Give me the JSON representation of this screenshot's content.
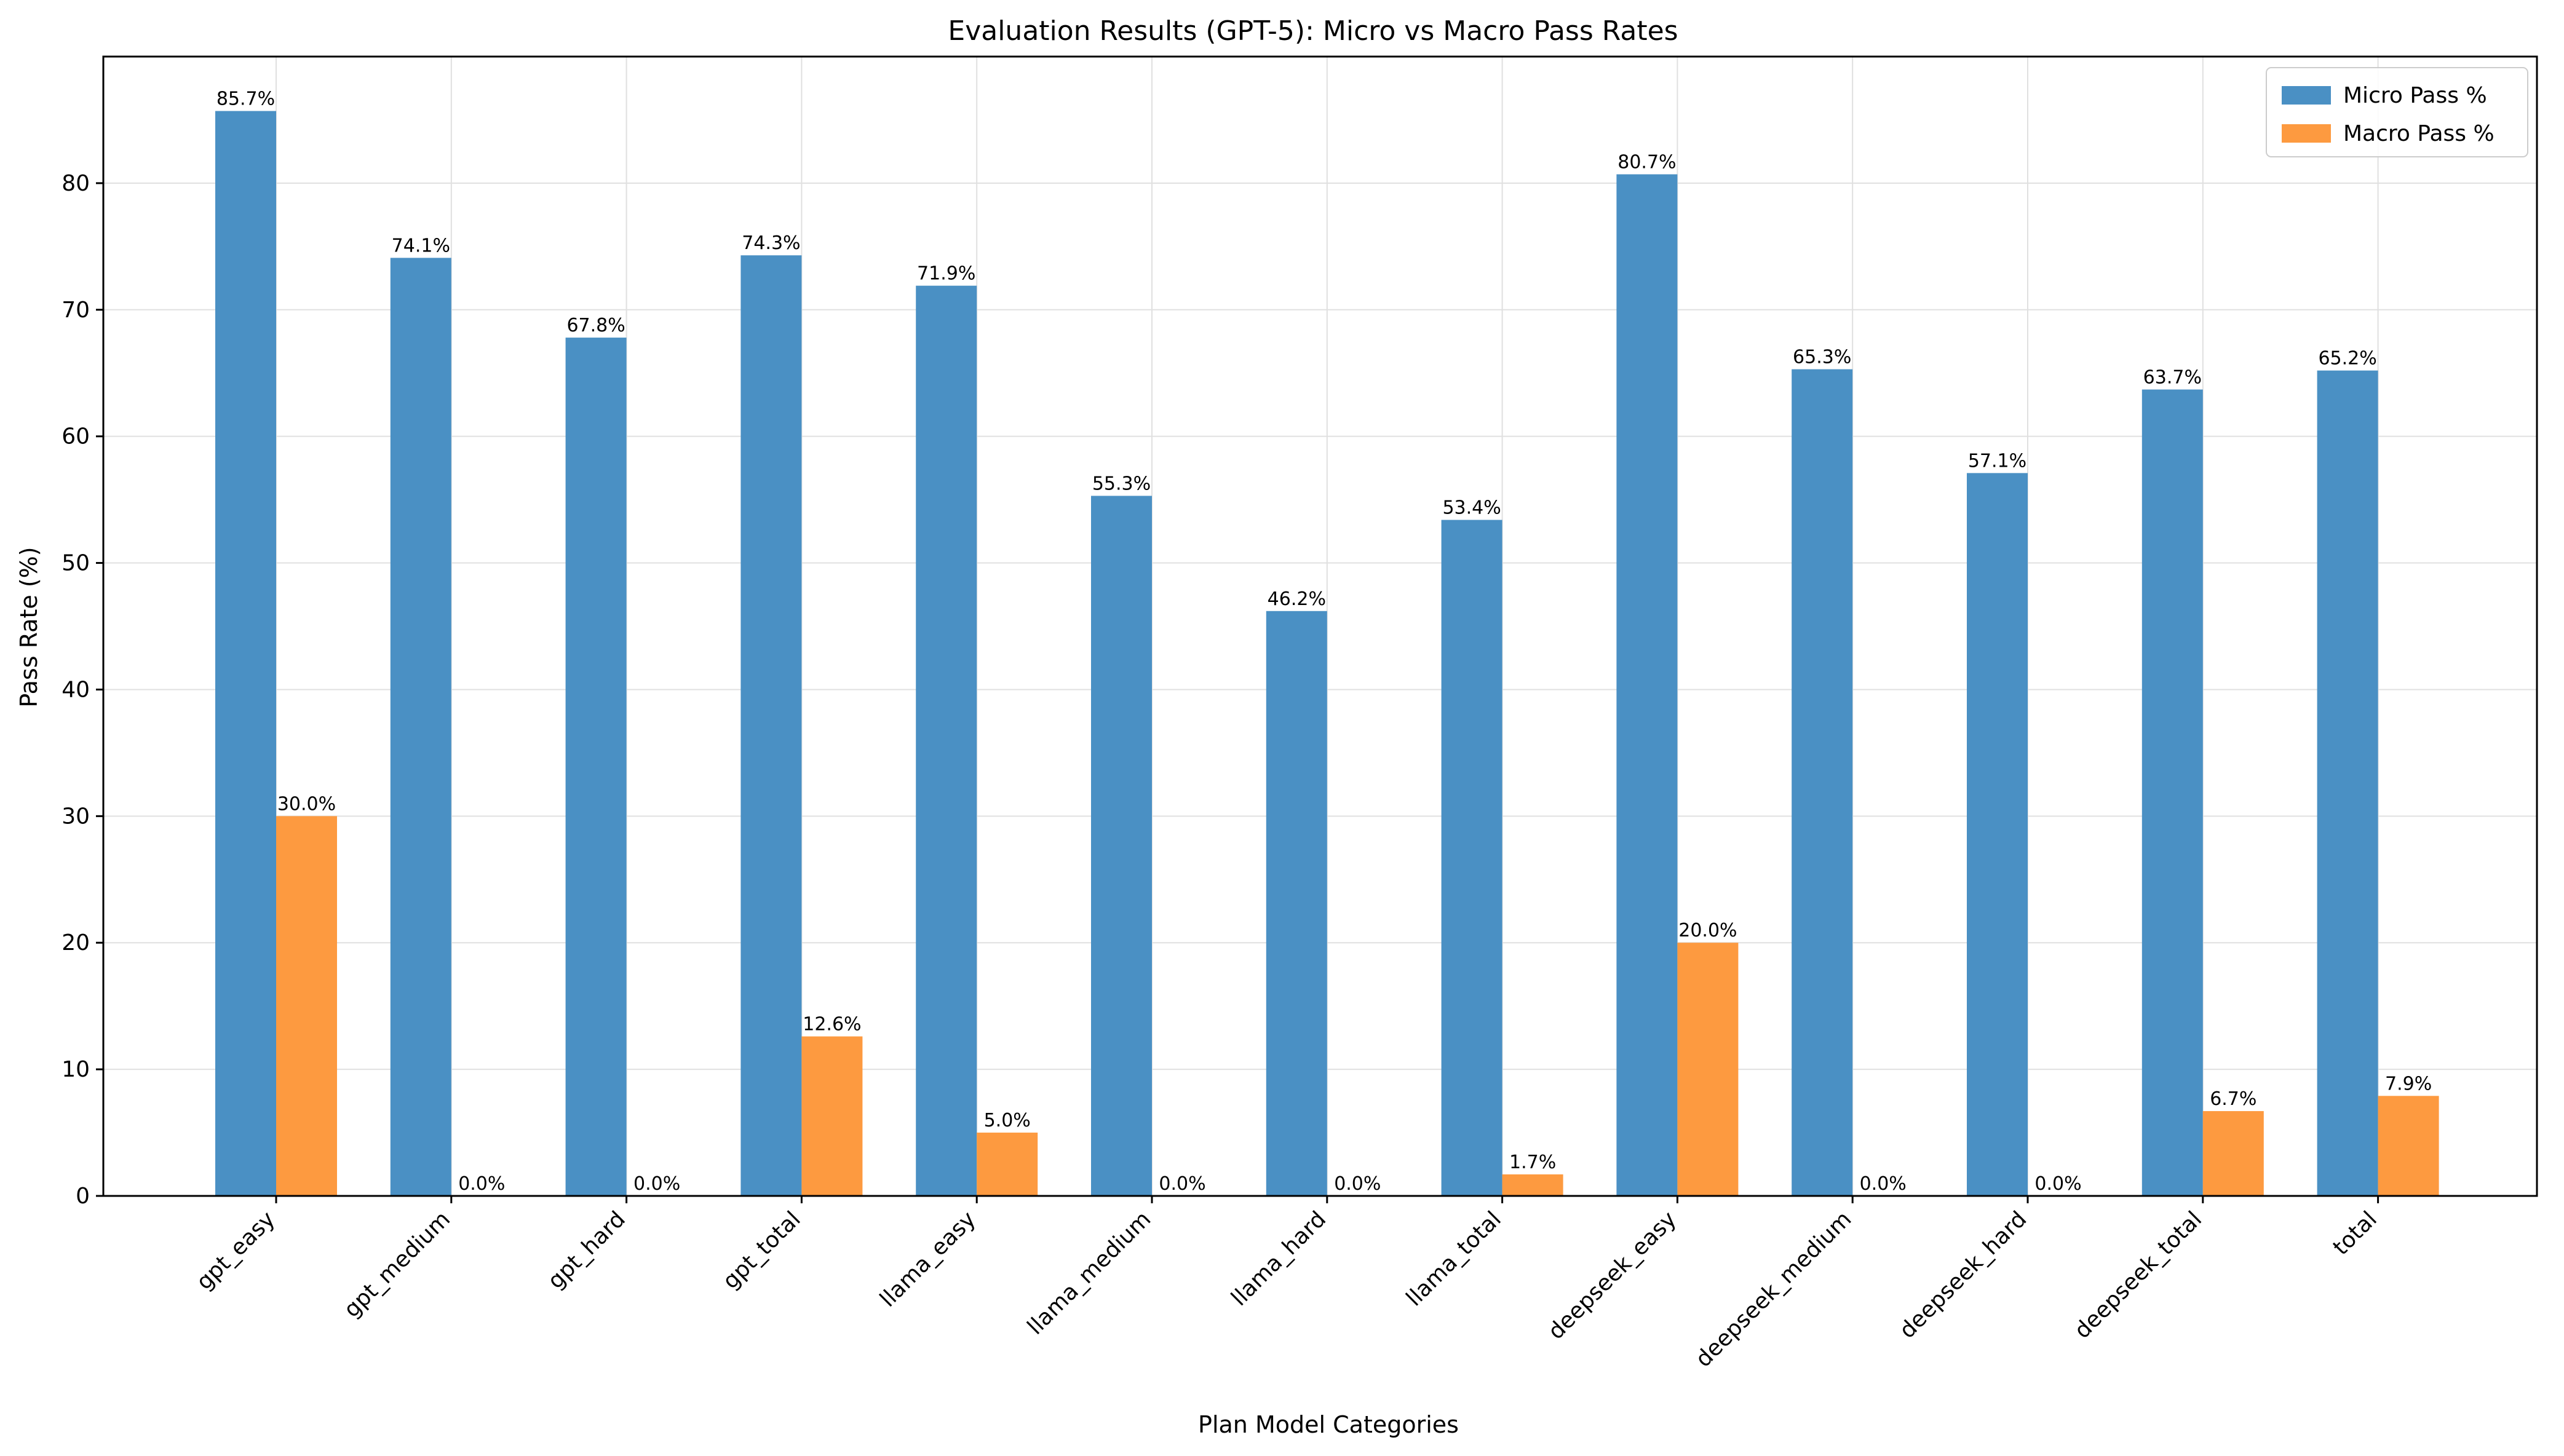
{
  "chart_data": {
    "type": "bar",
    "title": "Evaluation Results (GPT-5): Micro vs Macro Pass Rates",
    "xlabel": "Plan Model Categories",
    "ylabel": "Pass Rate (%)",
    "ylim": [
      0,
      90
    ],
    "yticks": [
      0,
      10,
      20,
      30,
      40,
      50,
      60,
      70,
      80
    ],
    "grid": true,
    "legend_position": "top-right",
    "categories": [
      "gpt_easy",
      "gpt_medium",
      "gpt_hard",
      "gpt_total",
      "llama_easy",
      "llama_medium",
      "llama_hard",
      "llama_total",
      "deepseek_easy",
      "deepseek_medium",
      "deepseek_hard",
      "deepseek_total",
      "total"
    ],
    "series": [
      {
        "name": "Micro Pass %",
        "color": "#4a90c4",
        "values": [
          85.7,
          74.1,
          67.8,
          74.3,
          71.9,
          55.3,
          46.2,
          53.4,
          80.7,
          65.3,
          57.1,
          63.7,
          65.2
        ],
        "labels": [
          "85.7%",
          "74.1%",
          "67.8%",
          "74.3%",
          "71.9%",
          "55.3%",
          "46.2%",
          "53.4%",
          "80.7%",
          "65.3%",
          "57.1%",
          "63.7%",
          "65.2%"
        ]
      },
      {
        "name": "Macro Pass %",
        "color": "#fd9a40",
        "values": [
          30.0,
          0.0,
          0.0,
          12.6,
          5.0,
          0.0,
          0.0,
          1.7,
          20.0,
          0.0,
          0.0,
          6.7,
          7.9
        ],
        "labels": [
          "30.0%",
          "0.0%",
          "0.0%",
          "12.6%",
          "5.0%",
          "0.0%",
          "0.0%",
          "1.7%",
          "20.0%",
          "0.0%",
          "0.0%",
          "6.7%",
          "7.9%"
        ]
      }
    ]
  }
}
